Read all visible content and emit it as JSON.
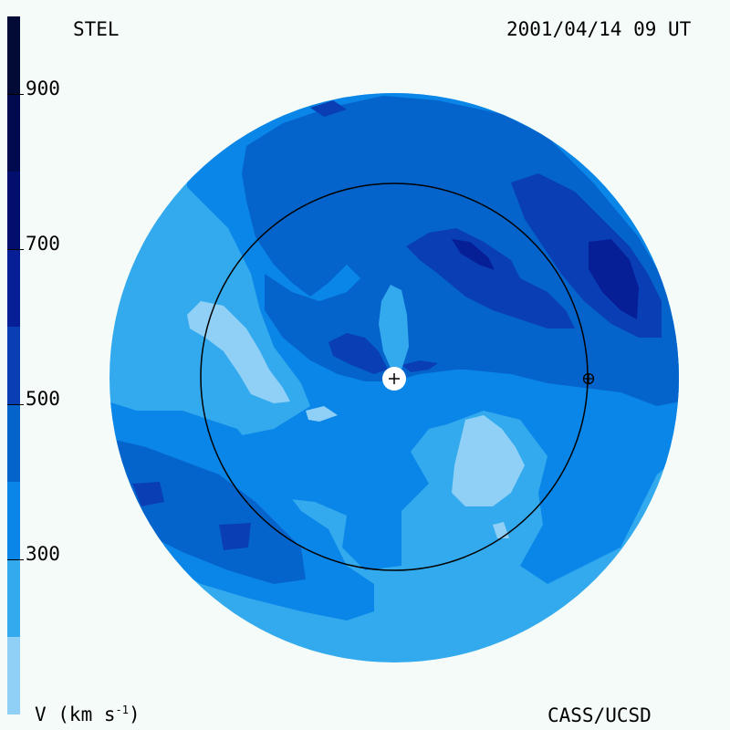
{
  "header": {
    "spacecraft": "STEL",
    "timestamp": "2001/04/14 09 UT"
  },
  "footer": {
    "credit": "CASS/UCSD"
  },
  "colorbar": {
    "unit_prefix": "V (km s",
    "unit_exponent": "-1",
    "unit_suffix": ")",
    "ticks": [
      {
        "value": 900,
        "label": "900"
      },
      {
        "value": 700,
        "label": "700"
      },
      {
        "value": 500,
        "label": "500"
      },
      {
        "value": 300,
        "label": "300"
      }
    ],
    "range": [
      100,
      1000
    ],
    "levels": [
      {
        "from": 100,
        "to": 200,
        "color": "#90d0f6"
      },
      {
        "from": 200,
        "to": 300,
        "color": "#33aaee"
      },
      {
        "from": 300,
        "to": 400,
        "color": "#0a86e8"
      },
      {
        "from": 400,
        "to": 500,
        "color": "#0564cc"
      },
      {
        "from": 500,
        "to": 600,
        "color": "#0a3eb4"
      },
      {
        "from": 600,
        "to": 700,
        "color": "#061e96"
      },
      {
        "from": 700,
        "to": 800,
        "color": "#020e6e"
      },
      {
        "from": 800,
        "to": 900,
        "color": "#010a4e"
      },
      {
        "from": 900,
        "to": 1000,
        "color": "#020a36"
      }
    ]
  },
  "map": {
    "sun_marker": "plus-icon",
    "earth_marker": "circled-plus-icon"
  }
}
